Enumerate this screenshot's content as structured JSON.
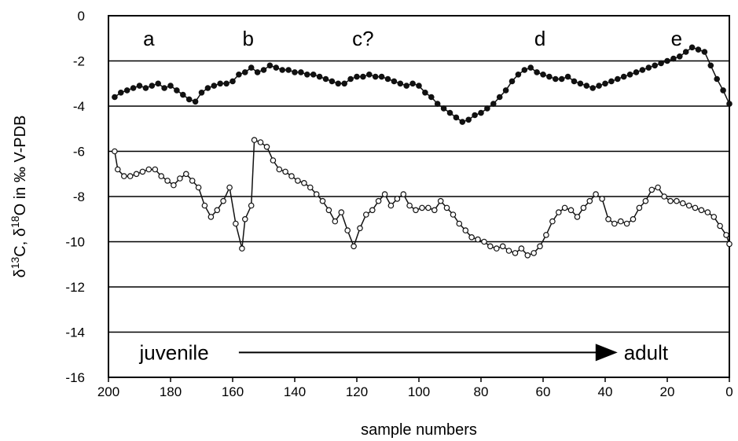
{
  "chart_data": {
    "type": "line",
    "xlabel": "sample numbers",
    "ylabel": {
      "parts": [
        {
          "text": "δ"
        },
        {
          "text": "13",
          "sup": true
        },
        {
          "text": "C, δ"
        },
        {
          "text": "18",
          "sup": true
        },
        {
          "text": "O in ‰ V-PDB"
        }
      ]
    },
    "xlim": [
      200,
      0
    ],
    "ylim": [
      -16,
      0
    ],
    "x_ticks": [
      200,
      180,
      160,
      140,
      120,
      100,
      80,
      60,
      40,
      20,
      0
    ],
    "y_ticks": [
      0,
      -2,
      -4,
      -6,
      -8,
      -10,
      -12,
      -14,
      -16
    ],
    "grid": "horizontal",
    "phase_labels": [
      {
        "text": "a",
        "x": 187,
        "y": -1.0
      },
      {
        "text": "b",
        "x": 155,
        "y": -1.0
      },
      {
        "text": "c?",
        "x": 118,
        "y": -1.0
      },
      {
        "text": "d",
        "x": 61,
        "y": -1.0
      },
      {
        "text": "e",
        "x": 17,
        "y": -1.0
      }
    ],
    "stage_annotation": {
      "from_text": "juvenile",
      "to_text": "adult",
      "from_text_x": 190,
      "to_text_x": 34,
      "arrow_x": [
        158,
        36
      ],
      "y": -14.9
    },
    "series": [
      {
        "marker": "filled-circle",
        "color": "#111111",
        "x": [
          198,
          196,
          194,
          192,
          190,
          188,
          186,
          184,
          182,
          180,
          178,
          176,
          174,
          172,
          170,
          168,
          166,
          164,
          162,
          160,
          158,
          156,
          154,
          152,
          150,
          148,
          146,
          144,
          142,
          140,
          138,
          136,
          134,
          132,
          130,
          128,
          126,
          124,
          122,
          120,
          118,
          116,
          114,
          112,
          110,
          108,
          106,
          104,
          102,
          100,
          98,
          96,
          94,
          92,
          90,
          88,
          86,
          84,
          82,
          80,
          78,
          76,
          74,
          72,
          70,
          68,
          66,
          64,
          62,
          60,
          58,
          56,
          54,
          52,
          50,
          48,
          46,
          44,
          42,
          40,
          38,
          36,
          34,
          32,
          30,
          28,
          26,
          24,
          22,
          20,
          18,
          16,
          14,
          12,
          10,
          8,
          6,
          4,
          2,
          0
        ],
        "y": [
          -3.6,
          -3.4,
          -3.3,
          -3.2,
          -3.1,
          -3.2,
          -3.1,
          -3.0,
          -3.2,
          -3.1,
          -3.3,
          -3.5,
          -3.7,
          -3.8,
          -3.4,
          -3.2,
          -3.1,
          -3.0,
          -3.0,
          -2.9,
          -2.6,
          -2.5,
          -2.3,
          -2.5,
          -2.4,
          -2.2,
          -2.3,
          -2.4,
          -2.4,
          -2.5,
          -2.5,
          -2.6,
          -2.6,
          -2.7,
          -2.8,
          -2.9,
          -3.0,
          -3.0,
          -2.8,
          -2.7,
          -2.7,
          -2.6,
          -2.7,
          -2.7,
          -2.8,
          -2.9,
          -3.0,
          -3.1,
          -3.0,
          -3.1,
          -3.4,
          -3.6,
          -3.9,
          -4.1,
          -4.3,
          -4.5,
          -4.7,
          -4.6,
          -4.4,
          -4.3,
          -4.1,
          -3.9,
          -3.6,
          -3.3,
          -2.9,
          -2.6,
          -2.4,
          -2.3,
          -2.5,
          -2.6,
          -2.7,
          -2.8,
          -2.8,
          -2.7,
          -2.9,
          -3.0,
          -3.1,
          -3.2,
          -3.1,
          -3.0,
          -2.9,
          -2.8,
          -2.7,
          -2.6,
          -2.5,
          -2.4,
          -2.3,
          -2.2,
          -2.1,
          -2.0,
          -1.9,
          -1.8,
          -1.6,
          -1.4,
          -1.5,
          -1.6,
          -2.2,
          -2.8,
          -3.3,
          -3.9
        ]
      },
      {
        "marker": "open-circle",
        "color": "#111111",
        "x": [
          198,
          197,
          195,
          193,
          191,
          189,
          187,
          185,
          183,
          181,
          179,
          177,
          175,
          173,
          171,
          169,
          167,
          165,
          163,
          161,
          159,
          157,
          156,
          154,
          153,
          151,
          149,
          147,
          145,
          143,
          141,
          139,
          137,
          135,
          133,
          131,
          129,
          127,
          125,
          123,
          121,
          119,
          117,
          115,
          113,
          111,
          109,
          107,
          105,
          103,
          101,
          99,
          97,
          95,
          93,
          91,
          89,
          87,
          85,
          83,
          81,
          79,
          77,
          75,
          73,
          71,
          69,
          67,
          65,
          63,
          61,
          59,
          57,
          55,
          53,
          51,
          49,
          47,
          45,
          43,
          41,
          39,
          37,
          35,
          33,
          31,
          29,
          27,
          25,
          23,
          21,
          19,
          17,
          15,
          13,
          11,
          9,
          7,
          5,
          3,
          1,
          0
        ],
        "y": [
          -6.0,
          -6.8,
          -7.1,
          -7.1,
          -7.0,
          -6.9,
          -6.8,
          -6.8,
          -7.1,
          -7.3,
          -7.5,
          -7.2,
          -7.0,
          -7.3,
          -7.6,
          -8.4,
          -8.9,
          -8.6,
          -8.2,
          -7.6,
          -9.2,
          -10.3,
          -9.0,
          -8.4,
          -5.5,
          -5.6,
          -5.8,
          -6.4,
          -6.8,
          -6.9,
          -7.1,
          -7.3,
          -7.4,
          -7.6,
          -7.9,
          -8.2,
          -8.6,
          -9.1,
          -8.7,
          -9.5,
          -10.2,
          -9.4,
          -8.8,
          -8.6,
          -8.2,
          -7.9,
          -8.4,
          -8.1,
          -7.9,
          -8.4,
          -8.6,
          -8.5,
          -8.5,
          -8.6,
          -8.2,
          -8.5,
          -8.8,
          -9.2,
          -9.5,
          -9.8,
          -9.9,
          -10.0,
          -10.2,
          -10.3,
          -10.2,
          -10.4,
          -10.5,
          -10.3,
          -10.6,
          -10.5,
          -10.2,
          -9.7,
          -9.1,
          -8.7,
          -8.5,
          -8.6,
          -8.9,
          -8.5,
          -8.2,
          -7.9,
          -8.1,
          -9.0,
          -9.2,
          -9.1,
          -9.2,
          -9.0,
          -8.5,
          -8.2,
          -7.7,
          -7.6,
          -8.0,
          -8.2,
          -8.2,
          -8.3,
          -8.4,
          -8.5,
          -8.6,
          -8.7,
          -8.9,
          -9.3,
          -9.7,
          -10.1
        ]
      }
    ]
  }
}
